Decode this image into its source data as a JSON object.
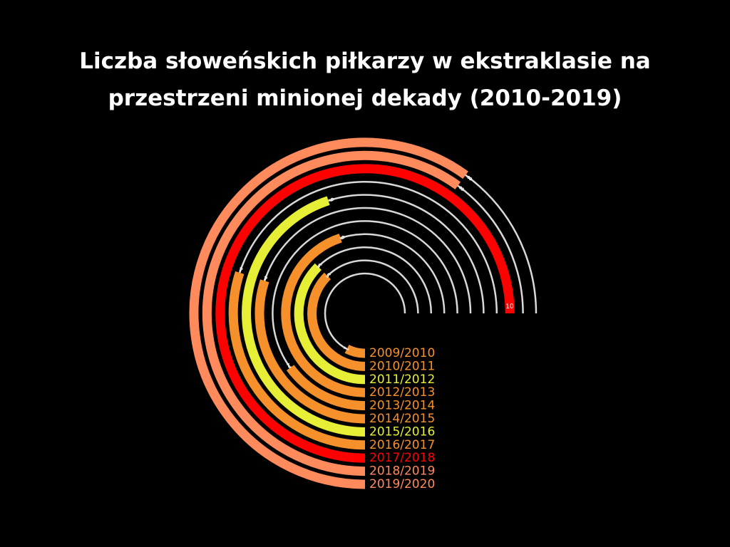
{
  "chart_data": {
    "type": "radial_bar",
    "title_lines": [
      "Liczba słoweńskich piłkarzy w ekstraklasie na",
      "przestrzeni minionej dekady (2010-2019)"
    ],
    "max_value": 10,
    "colors": {
      "background": "#000000",
      "track": "#d9d9d9",
      "title": "#ffffff",
      "label_on_track": "#ffffff",
      "label_on_bar": "#ffffff"
    },
    "series": [
      {
        "season": "2009/2010",
        "value": 1,
        "color": "#f5902a"
      },
      {
        "season": "2010/2011",
        "value": 5,
        "color": "#f5902a"
      },
      {
        "season": "2011/2012",
        "value": 5,
        "color": "#e6ee36"
      },
      {
        "season": "2012/2013",
        "value": 6,
        "color": "#f5902a"
      },
      {
        "season": "2013/2014",
        "value": 2,
        "color": "#f5902a"
      },
      {
        "season": "2014/2015",
        "value": 4,
        "color": "#f5902a"
      },
      {
        "season": "2015/2016",
        "value": 6,
        "color": "#e6ee36"
      },
      {
        "season": "2016/2017",
        "value": 4,
        "color": "#f5902a"
      },
      {
        "season": "2017/2018",
        "value": 10,
        "color": "#ff0000"
      },
      {
        "season": "2018/2019",
        "value": 8,
        "color": "#ff8a5c"
      },
      {
        "season": "2019/2020",
        "value": 8,
        "color": "#ff8a5c"
      }
    ]
  }
}
